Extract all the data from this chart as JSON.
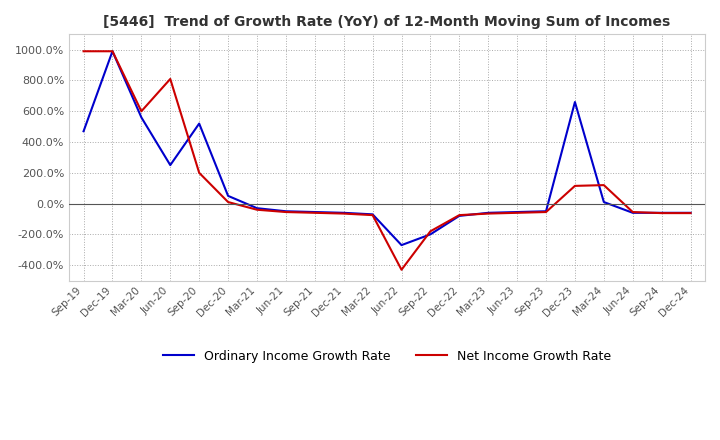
{
  "title": "[5446]  Trend of Growth Rate (YoY) of 12-Month Moving Sum of Incomes",
  "title_fontsize": 10,
  "background_color": "#ffffff",
  "plot_background_color": "#ffffff",
  "grid_color": "#aaaaaa",
  "line_ordinary_color": "#0000cc",
  "line_net_color": "#cc0000",
  "line_width": 1.5,
  "ylim": [
    -500,
    1100
  ],
  "yticks": [
    -400,
    -200,
    0,
    200,
    400,
    600,
    800,
    1000
  ],
  "legend_labels": [
    "Ordinary Income Growth Rate",
    "Net Income Growth Rate"
  ],
  "x_labels": [
    "Sep-19",
    "Dec-19",
    "Mar-20",
    "Jun-20",
    "Sep-20",
    "Dec-20",
    "Mar-21",
    "Jun-21",
    "Sep-21",
    "Dec-21",
    "Mar-22",
    "Jun-22",
    "Sep-22",
    "Dec-22",
    "Mar-23",
    "Jun-23",
    "Sep-23",
    "Dec-23",
    "Mar-24",
    "Jun-24",
    "Sep-24",
    "Dec-24"
  ],
  "ordinary_values": [
    470,
    990,
    560,
    250,
    520,
    50,
    -30,
    -50,
    -55,
    -60,
    -70,
    -270,
    -200,
    -80,
    -60,
    -55,
    -50,
    660,
    10,
    -60,
    -60,
    -60
  ],
  "net_values": [
    990,
    990,
    600,
    810,
    200,
    10,
    -40,
    -55,
    -60,
    -65,
    -75,
    -430,
    -180,
    -75,
    -65,
    -60,
    -55,
    115,
    120,
    -55,
    -62,
    -62
  ]
}
